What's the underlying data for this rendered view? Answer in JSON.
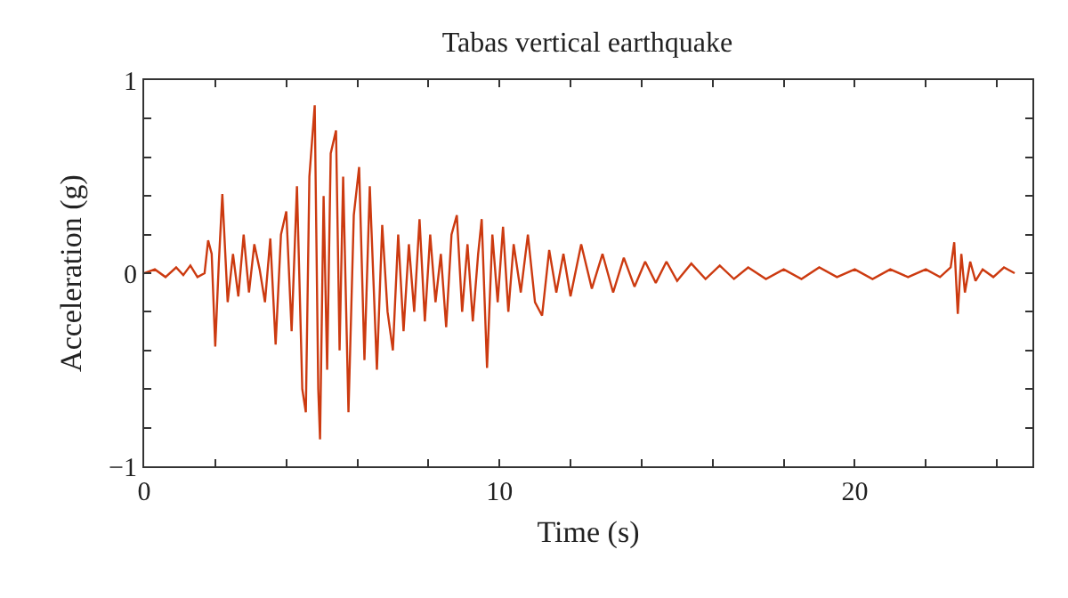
{
  "chart_data": {
    "type": "line",
    "title": "Tabas vertical earthquake",
    "xlabel": "Time (s)",
    "ylabel": "Acceleration (g)",
    "xlim": [
      0,
      25
    ],
    "ylim": [
      -1,
      1
    ],
    "xticks": [
      0,
      {
        "value": 2,
        "label": null
      },
      {
        "value": 4,
        "label": null
      },
      {
        "value": 6,
        "label": null
      },
      {
        "value": 8,
        "label": null
      },
      10,
      {
        "value": 12,
        "label": null
      },
      {
        "value": 14,
        "label": null
      },
      {
        "value": 16,
        "label": null
      },
      {
        "value": 18,
        "label": null
      },
      20,
      {
        "value": 22,
        "label": null
      },
      {
        "value": 24,
        "label": null
      }
    ],
    "yticks": [
      -1,
      {
        "value": -0.8,
        "label": null
      },
      {
        "value": -0.6,
        "label": null
      },
      {
        "value": -0.4,
        "label": null
      },
      {
        "value": -0.2,
        "label": null
      },
      0,
      {
        "value": 0.2,
        "label": null
      },
      {
        "value": 0.4,
        "label": null
      },
      {
        "value": 0.6,
        "label": null
      },
      {
        "value": 0.8,
        "label": null
      },
      1
    ],
    "marker": "none",
    "line_style": "solid",
    "series": [
      {
        "color": "#cc3a10",
        "x": [
          0,
          0.3,
          0.6,
          0.9,
          1.1,
          1.3,
          1.5,
          1.7,
          1.8,
          1.9,
          2.0,
          2.1,
          2.2,
          2.35,
          2.5,
          2.65,
          2.8,
          2.95,
          3.1,
          3.25,
          3.4,
          3.55,
          3.7,
          3.85,
          4.0,
          4.15,
          4.3,
          4.45,
          4.55,
          4.65,
          4.8,
          4.9,
          4.95,
          5.05,
          5.15,
          5.25,
          5.4,
          5.5,
          5.6,
          5.75,
          5.9,
          6.05,
          6.2,
          6.35,
          6.55,
          6.7,
          6.85,
          7.0,
          7.15,
          7.3,
          7.45,
          7.6,
          7.75,
          7.9,
          8.05,
          8.2,
          8.35,
          8.5,
          8.65,
          8.8,
          8.95,
          9.1,
          9.25,
          9.4,
          9.5,
          9.65,
          9.8,
          9.95,
          10.1,
          10.25,
          10.4,
          10.6,
          10.8,
          11.0,
          11.2,
          11.4,
          11.6,
          11.8,
          12.0,
          12.3,
          12.6,
          12.9,
          13.2,
          13.5,
          13.8,
          14.1,
          14.4,
          14.7,
          15.0,
          15.4,
          15.8,
          16.2,
          16.6,
          17.0,
          17.5,
          18.0,
          18.5,
          19.0,
          19.5,
          20.0,
          20.5,
          21.0,
          21.5,
          22.0,
          22.4,
          22.7,
          22.8,
          22.9,
          23.0,
          23.1,
          23.25,
          23.4,
          23.6,
          23.9,
          24.2,
          24.5
        ],
        "values": [
          0,
          0.02,
          -0.02,
          0.03,
          -0.01,
          0.04,
          -0.02,
          0,
          0.17,
          0.1,
          -0.38,
          0.05,
          0.41,
          -0.15,
          0.1,
          -0.12,
          0.2,
          -0.1,
          0.15,
          0.02,
          -0.15,
          0.18,
          -0.37,
          0.2,
          0.32,
          -0.3,
          0.45,
          -0.6,
          -0.72,
          0.5,
          0.87,
          -0.6,
          -0.86,
          0.4,
          -0.5,
          0.62,
          0.74,
          -0.4,
          0.5,
          -0.72,
          0.3,
          0.55,
          -0.45,
          0.45,
          -0.5,
          0.25,
          -0.2,
          -0.4,
          0.2,
          -0.3,
          0.15,
          -0.2,
          0.28,
          -0.25,
          0.2,
          -0.15,
          0.1,
          -0.28,
          0.2,
          0.3,
          -0.2,
          0.15,
          -0.25,
          0.1,
          0.28,
          -0.49,
          0.2,
          -0.15,
          0.24,
          -0.2,
          0.15,
          -0.1,
          0.2,
          -0.15,
          -0.22,
          0.12,
          -0.1,
          0.1,
          -0.12,
          0.15,
          -0.08,
          0.1,
          -0.1,
          0.08,
          -0.07,
          0.06,
          -0.05,
          0.06,
          -0.04,
          0.05,
          -0.03,
          0.04,
          -0.03,
          0.03,
          -0.03,
          0.02,
          -0.03,
          0.03,
          -0.02,
          0.02,
          -0.03,
          0.02,
          -0.02,
          0.02,
          -0.02,
          0.03,
          0.16,
          -0.21,
          0.1,
          -0.1,
          0.06,
          -0.04,
          0.02,
          -0.02,
          0.03,
          0
        ]
      }
    ]
  }
}
